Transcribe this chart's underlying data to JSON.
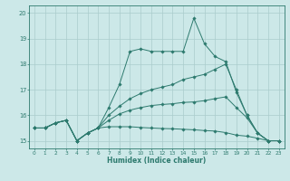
{
  "title": "",
  "xlabel": "Humidex (Indice chaleur)",
  "xlim": [
    -0.5,
    23.5
  ],
  "ylim": [
    14.7,
    20.3
  ],
  "yticks": [
    15,
    16,
    17,
    18,
    19,
    20
  ],
  "xticks": [
    0,
    1,
    2,
    3,
    4,
    5,
    6,
    7,
    8,
    9,
    10,
    11,
    12,
    13,
    14,
    15,
    16,
    17,
    18,
    19,
    20,
    21,
    22,
    23
  ],
  "bg_color": "#cce8e8",
  "grid_color": "#aacccc",
  "line_color": "#2d7a6e",
  "series": [
    {
      "x": [
        0,
        1,
        2,
        3,
        4,
        5,
        6,
        7,
        8,
        9,
        10,
        11,
        12,
        13,
        14,
        15,
        16,
        17,
        18,
        19,
        20,
        21,
        22,
        23
      ],
      "y": [
        15.5,
        15.5,
        15.7,
        15.8,
        15.0,
        15.3,
        15.5,
        16.3,
        17.2,
        18.5,
        18.6,
        18.5,
        18.5,
        18.5,
        18.5,
        19.8,
        18.8,
        18.3,
        18.1,
        16.9,
        16.0,
        15.3,
        15.0,
        15.0
      ]
    },
    {
      "x": [
        0,
        1,
        2,
        3,
        4,
        5,
        6,
        7,
        8,
        9,
        10,
        11,
        12,
        13,
        14,
        15,
        16,
        17,
        18,
        19,
        20,
        21,
        22,
        23
      ],
      "y": [
        15.5,
        15.5,
        15.7,
        15.8,
        15.0,
        15.3,
        15.5,
        16.0,
        16.35,
        16.65,
        16.85,
        17.0,
        17.1,
        17.2,
        17.4,
        17.5,
        17.6,
        17.8,
        18.0,
        17.0,
        16.0,
        15.3,
        15.0,
        15.0
      ]
    },
    {
      "x": [
        0,
        1,
        2,
        3,
        4,
        5,
        6,
        7,
        8,
        9,
        10,
        11,
        12,
        13,
        14,
        15,
        16,
        17,
        18,
        19,
        20,
        21,
        22,
        23
      ],
      "y": [
        15.5,
        15.5,
        15.7,
        15.8,
        15.0,
        15.3,
        15.5,
        15.8,
        16.05,
        16.2,
        16.3,
        16.38,
        16.42,
        16.45,
        16.5,
        16.52,
        16.57,
        16.65,
        16.72,
        16.3,
        15.9,
        15.3,
        15.0,
        15.0
      ]
    },
    {
      "x": [
        0,
        1,
        2,
        3,
        4,
        5,
        6,
        7,
        8,
        9,
        10,
        11,
        12,
        13,
        14,
        15,
        16,
        17,
        18,
        19,
        20,
        21,
        22,
        23
      ],
      "y": [
        15.5,
        15.5,
        15.7,
        15.8,
        15.0,
        15.3,
        15.5,
        15.55,
        15.55,
        15.55,
        15.52,
        15.5,
        15.48,
        15.47,
        15.45,
        15.43,
        15.4,
        15.38,
        15.32,
        15.22,
        15.18,
        15.1,
        15.0,
        15.0
      ]
    }
  ]
}
